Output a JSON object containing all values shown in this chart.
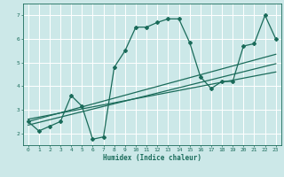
{
  "xlabel": "Humidex (Indice chaleur)",
  "bg_color": "#cce8e8",
  "grid_color": "#ffffff",
  "line_color": "#1a6b5a",
  "xlim": [
    -0.5,
    23.5
  ],
  "ylim": [
    1.5,
    7.5
  ],
  "xticks": [
    0,
    1,
    2,
    3,
    4,
    5,
    6,
    7,
    8,
    9,
    10,
    11,
    12,
    13,
    14,
    15,
    16,
    17,
    18,
    19,
    20,
    21,
    22,
    23
  ],
  "yticks": [
    2,
    3,
    4,
    5,
    6,
    7
  ],
  "main_line_x": [
    0,
    1,
    2,
    3,
    4,
    5,
    6,
    7,
    8,
    9,
    10,
    11,
    12,
    13,
    14,
    15,
    16,
    17,
    18,
    19,
    20,
    21,
    22,
    23
  ],
  "main_line_y": [
    2.5,
    2.1,
    2.3,
    2.5,
    3.6,
    3.15,
    1.75,
    1.85,
    4.8,
    5.5,
    6.5,
    6.5,
    6.7,
    6.85,
    6.85,
    5.85,
    4.4,
    3.9,
    4.2,
    4.2,
    5.7,
    5.8,
    7.0,
    6.0
  ],
  "trend_line1_x": [
    0,
    23
  ],
  "trend_line1_y": [
    2.35,
    4.95
  ],
  "trend_line2_x": [
    0,
    23
  ],
  "trend_line2_y": [
    2.5,
    5.35
  ],
  "trend_line3_x": [
    0,
    23
  ],
  "trend_line3_y": [
    2.6,
    4.6
  ]
}
